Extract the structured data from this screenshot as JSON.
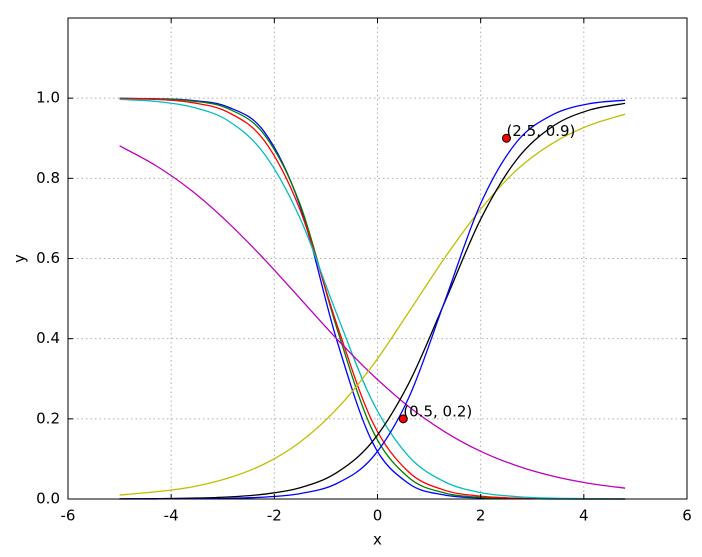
{
  "chart_data": {
    "type": "line",
    "x_label": "x",
    "y_label": "y",
    "x": [
      -5,
      -4.3,
      -3.6,
      -2.9,
      -2.2,
      -1.5,
      -0.8,
      -0.1,
      0.6,
      1.3,
      2.0,
      2.7,
      3.4,
      4.1,
      4.8
    ],
    "series": [
      {
        "color": "#0000ff",
        "values": [
          0.9997,
          0.9986,
          0.9945,
          0.978,
          0.917,
          0.731,
          0.401,
          0.142,
          0.039,
          0.01,
          0.0025,
          0.0006,
          0.0002,
          0,
          0
        ]
      },
      {
        "color": "#008000",
        "values": [
          0.9994,
          0.998,
          0.993,
          0.974,
          0.91,
          0.735,
          0.431,
          0.172,
          0.054,
          0.015,
          0.004,
          0.001,
          0.0003,
          0.0001,
          0
        ]
      },
      {
        "color": "#ff0000",
        "values": [
          0.999,
          0.997,
          0.989,
          0.965,
          0.895,
          0.721,
          0.44,
          0.193,
          0.068,
          0.022,
          0.007,
          0.002,
          0.0006,
          0.0002,
          0.0001
        ]
      },
      {
        "color": "#00bfbf",
        "values": [
          0.997,
          0.992,
          0.978,
          0.944,
          0.862,
          0.7,
          0.465,
          0.244,
          0.107,
          0.043,
          0.016,
          0.006,
          0.002,
          0.001,
          0.0003
        ]
      },
      {
        "color": "#bf00bf",
        "values": [
          0.881,
          0.832,
          0.769,
          0.69,
          0.599,
          0.5,
          0.401,
          0.31,
          0.231,
          0.168,
          0.119,
          0.083,
          0.057,
          0.039,
          0.027
        ]
      },
      {
        "color": "#bfbf00",
        "values": [
          0.01,
          0.018,
          0.03,
          0.052,
          0.087,
          0.142,
          0.223,
          0.332,
          0.465,
          0.601,
          0.723,
          0.821,
          0.888,
          0.932,
          0.96
        ]
      },
      {
        "color": "#000000",
        "values": [
          0.0004,
          0.0009,
          0.0021,
          0.005,
          0.012,
          0.028,
          0.065,
          0.143,
          0.287,
          0.49,
          0.698,
          0.847,
          0.93,
          0.97,
          0.987
        ]
      },
      {
        "color": "#0000ff",
        "values": [
          0.0001,
          0.0002,
          0.0006,
          0.0016,
          0.0047,
          0.0135,
          0.038,
          0.103,
          0.251,
          0.492,
          0.737,
          0.891,
          0.959,
          0.986,
          0.995
        ]
      }
    ],
    "annotations": [
      {
        "text": "(0.5, 0.2)",
        "x": 0.5,
        "y": 0.2,
        "color": "#ff0000"
      },
      {
        "text": "(2.5, 0.9)",
        "x": 2.5,
        "y": 0.9,
        "color": "#ff0000"
      }
    ],
    "xlim": [
      -6,
      6
    ],
    "ylim": [
      0,
      1.2
    ],
    "xticks": [
      -6,
      -4,
      -2,
      0,
      2,
      4,
      6
    ],
    "yticks": [
      {
        "value": 0,
        "label": "0.0"
      },
      0.2,
      0.4,
      0.6,
      0.8,
      {
        "value": 1,
        "label": "1.0"
      }
    ],
    "grid": true
  }
}
